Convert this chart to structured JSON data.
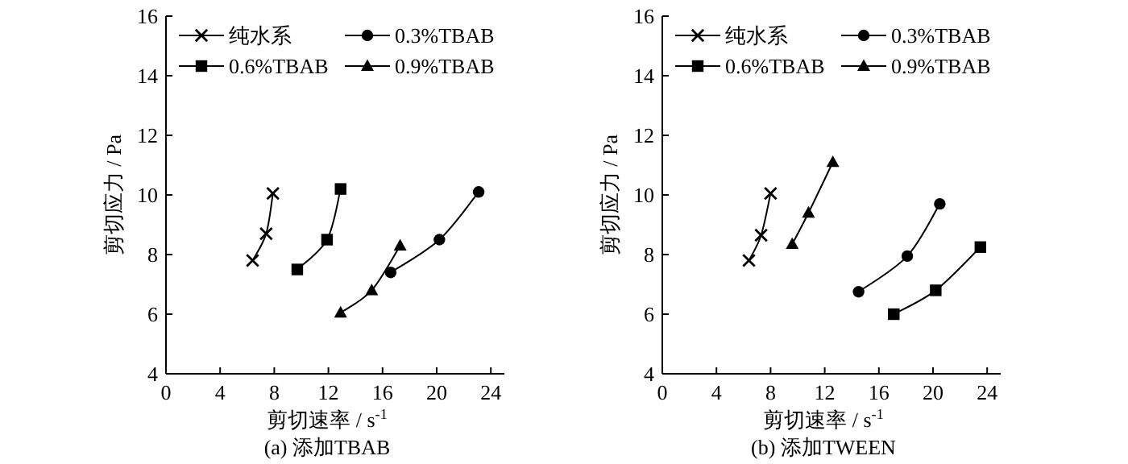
{
  "chart_data": [
    {
      "type": "line",
      "xlabel": "剪切速率 / s$^{-1}$",
      "ylabel": "剪切应力 / Pa",
      "xlim": [
        0,
        25
      ],
      "ylim": [
        4,
        16
      ],
      "xticks": [
        0,
        4,
        8,
        12,
        16,
        20,
        24
      ],
      "yticks": [
        4,
        6,
        8,
        10,
        12,
        14,
        16
      ],
      "legend": "top",
      "annotations": [
        "(a) 添加TBAB"
      ],
      "series": [
        {
          "name": "纯水系",
          "color": "#000000",
          "marker": "cross",
          "x": [
            6.4,
            7.4,
            7.9
          ],
          "values": [
            7.8,
            8.7,
            10.05
          ]
        },
        {
          "name": "0.3%TBAB",
          "color": "#000000",
          "marker": "circle",
          "x": [
            16.6,
            20.2,
            23.1
          ],
          "values": [
            7.4,
            8.5,
            10.1
          ]
        },
        {
          "name": "0.6%TBAB",
          "color": "#000000",
          "marker": "square",
          "x": [
            9.7,
            11.9,
            12.9
          ],
          "values": [
            7.5,
            8.5,
            10.2
          ]
        },
        {
          "name": "0.9%TBAB",
          "color": "#000000",
          "marker": "triangle",
          "x": [
            12.9,
            15.2,
            17.3
          ],
          "values": [
            6.05,
            6.8,
            8.3
          ]
        }
      ]
    },
    {
      "type": "line",
      "xlabel": "剪切速率 / s$^{-1}$",
      "ylabel": "剪切应力 / Pa",
      "xlim": [
        0,
        25
      ],
      "ylim": [
        4,
        16
      ],
      "xticks": [
        0,
        4,
        8,
        12,
        16,
        20,
        24
      ],
      "yticks": [
        4,
        6,
        8,
        10,
        12,
        14,
        16
      ],
      "legend": "top",
      "annotations": [
        "(b) 添加TWEEN"
      ],
      "series": [
        {
          "name": "纯水系",
          "color": "#000000",
          "marker": "cross",
          "x": [
            6.4,
            7.3,
            8.0
          ],
          "values": [
            7.8,
            8.65,
            10.05
          ]
        },
        {
          "name": "0.3%TBAB",
          "color": "#000000",
          "marker": "circle",
          "x": [
            14.5,
            18.1,
            20.5
          ],
          "values": [
            6.75,
            7.95,
            9.7
          ]
        },
        {
          "name": "0.6%TBAB",
          "color": "#000000",
          "marker": "square",
          "x": [
            17.1,
            20.2,
            23.5
          ],
          "values": [
            6.0,
            6.8,
            8.25
          ]
        },
        {
          "name": "0.9%TBAB",
          "color": "#000000",
          "marker": "triangle",
          "x": [
            9.6,
            10.8,
            12.6
          ],
          "values": [
            8.35,
            9.4,
            11.1
          ]
        }
      ]
    }
  ]
}
